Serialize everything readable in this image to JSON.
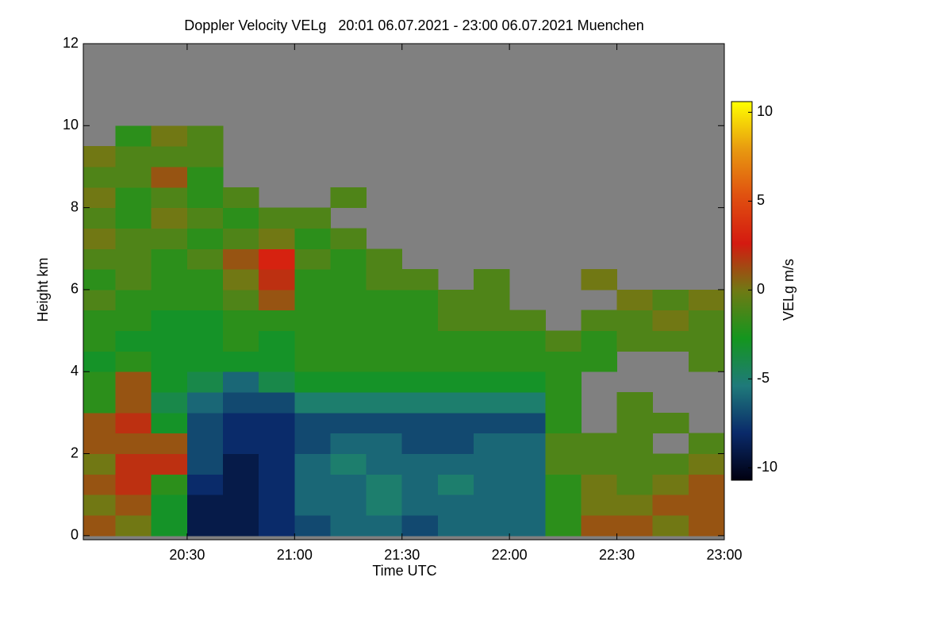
{
  "chart_data": {
    "type": "heatmap",
    "title": "Doppler Velocity VELg   20:01 06.07.2021 - 23:00 06.07.2021 Muenchen",
    "xlabel": "Time UTC",
    "ylabel": "Height km",
    "colorbar_label": "VELg m/s",
    "xlim": [
      20.0167,
      23.0
    ],
    "ylim": [
      -0.1,
      12
    ],
    "xticks": [
      {
        "value": 20.5,
        "label": "20:30"
      },
      {
        "value": 21.0,
        "label": "21:00"
      },
      {
        "value": 21.5,
        "label": "21:30"
      },
      {
        "value": 22.0,
        "label": "22:00"
      },
      {
        "value": 22.5,
        "label": "22:30"
      },
      {
        "value": 23.0,
        "label": "23:00"
      }
    ],
    "yticks": [
      0,
      2,
      4,
      6,
      8,
      10,
      12
    ],
    "zlim": [
      -10.7,
      10.6
    ],
    "zticks": [
      -10,
      -5,
      0,
      5,
      10
    ],
    "colorscale": [
      "#000010",
      "#0a2a6a",
      "#1f7a7a",
      "#14961e",
      "#6f7a14",
      "#d41a10",
      "#e05010",
      "#e89a10",
      "#ffff00"
    ],
    "missing_color": "#808080",
    "xbins": [
      20.0167,
      20.1667,
      20.3333,
      20.5,
      20.6667,
      20.8333,
      21.0,
      21.1667,
      21.3333,
      21.5,
      21.6667,
      21.8333,
      22.0,
      22.1667,
      22.3333,
      22.5,
      22.6667,
      22.8333,
      23.0
    ],
    "ybins": [
      0,
      0.5,
      1,
      1.5,
      2,
      2.5,
      3,
      3.5,
      4,
      4.5,
      5,
      5.5,
      6,
      6.5,
      7,
      7.5,
      8,
      8.5,
      9,
      9.5,
      10,
      10.5,
      11,
      11.5,
      12
    ],
    "z": [
      [
        1,
        0,
        -3,
        -9,
        -9,
        -8,
        -7,
        -6,
        -6,
        -7,
        -6,
        -6,
        -6,
        -2,
        1,
        1,
        0,
        1
      ],
      [
        0,
        1,
        -3,
        -9,
        -9,
        -8,
        -6,
        -6,
        -5,
        -6,
        -6,
        -6,
        -6,
        -2,
        0,
        0,
        1,
        1
      ],
      [
        1,
        2,
        -2,
        -8,
        -9,
        -8,
        -6,
        -6,
        -5,
        -6,
        -5,
        -6,
        -6,
        -2,
        0,
        -1,
        0,
        1
      ],
      [
        0,
        2,
        2,
        -7,
        -9,
        -8,
        -6,
        -5,
        -6,
        -6,
        -6,
        -6,
        -6,
        -1,
        -1,
        -1,
        -1,
        0
      ],
      [
        1,
        1,
        1,
        -7,
        -8,
        -8,
        -7,
        -6,
        -6,
        -7,
        -7,
        -6,
        -6,
        -1,
        -1,
        -1,
        null,
        -1
      ],
      [
        1,
        2,
        -3,
        -7,
        -8,
        -8,
        -7,
        -7,
        -7,
        -7,
        -7,
        -7,
        -7,
        -2,
        null,
        -1,
        -1,
        null
      ],
      [
        -2,
        1,
        -4,
        -6,
        -7,
        -7,
        -5,
        -5,
        -5,
        -5,
        -5,
        -5,
        -5,
        -2,
        null,
        -1,
        null,
        null
      ],
      [
        -2,
        1,
        -3,
        -4,
        -6,
        -4,
        -3,
        -3,
        -3,
        -3,
        -3,
        -3,
        -3,
        -2,
        null,
        null,
        null,
        null
      ],
      [
        -3,
        -2,
        -3,
        -3,
        -3,
        -3,
        -2,
        -2,
        -2,
        -2,
        -2,
        -2,
        -2,
        -2,
        -2,
        null,
        null,
        -1
      ],
      [
        -2,
        -3,
        -3,
        -3,
        -2,
        -3,
        -2,
        -2,
        -2,
        -2,
        -2,
        -2,
        -2,
        -1,
        -2,
        -1,
        -1,
        -1
      ],
      [
        -2,
        -2,
        -3,
        -3,
        -2,
        -2,
        -2,
        -2,
        -2,
        -2,
        -1,
        -1,
        -1,
        null,
        -1,
        -1,
        0,
        -1
      ],
      [
        -1,
        -2,
        -2,
        -2,
        -1,
        1,
        -2,
        -2,
        -2,
        -2,
        -1,
        -1,
        null,
        null,
        null,
        0,
        -1,
        0
      ],
      [
        -2,
        -1,
        -2,
        -2,
        0,
        2,
        -2,
        -2,
        -1,
        -1,
        null,
        -1,
        null,
        null,
        0,
        null,
        null,
        null
      ],
      [
        -1,
        -1,
        -2,
        -1,
        1,
        3,
        -1,
        -2,
        -1,
        null,
        null,
        null,
        null,
        null,
        null,
        null,
        null,
        null
      ],
      [
        0,
        -1,
        -1,
        -2,
        -1,
        0,
        -2,
        -1,
        null,
        null,
        null,
        null,
        null,
        null,
        null,
        null,
        null,
        null
      ],
      [
        -1,
        -2,
        0,
        -1,
        -2,
        -1,
        -1,
        null,
        null,
        null,
        null,
        null,
        null,
        null,
        null,
        null,
        null,
        null
      ],
      [
        0,
        -2,
        -1,
        -2,
        -1,
        null,
        null,
        -1,
        null,
        null,
        null,
        null,
        null,
        null,
        null,
        null,
        null,
        null
      ],
      [
        -1,
        -1,
        1,
        -2,
        null,
        null,
        null,
        null,
        null,
        null,
        null,
        null,
        null,
        null,
        null,
        null,
        null,
        null
      ],
      [
        0,
        -1,
        -1,
        -1,
        null,
        null,
        null,
        null,
        null,
        null,
        null,
        null,
        null,
        null,
        null,
        null,
        null,
        null
      ],
      [
        null,
        -2,
        0,
        -1,
        null,
        null,
        null,
        null,
        null,
        null,
        null,
        null,
        null,
        null,
        null,
        null,
        null,
        null
      ],
      [
        null,
        null,
        null,
        null,
        null,
        null,
        null,
        null,
        null,
        null,
        null,
        null,
        null,
        null,
        null,
        null,
        null,
        null
      ],
      [
        null,
        null,
        null,
        null,
        null,
        null,
        null,
        null,
        null,
        null,
        null,
        null,
        null,
        null,
        null,
        null,
        null,
        null
      ],
      [
        null,
        null,
        null,
        null,
        null,
        null,
        null,
        null,
        null,
        null,
        null,
        null,
        null,
        null,
        null,
        null,
        null,
        null
      ],
      [
        null,
        null,
        null,
        null,
        null,
        null,
        null,
        null,
        null,
        null,
        null,
        null,
        null,
        null,
        null,
        null,
        null,
        null
      ]
    ]
  }
}
